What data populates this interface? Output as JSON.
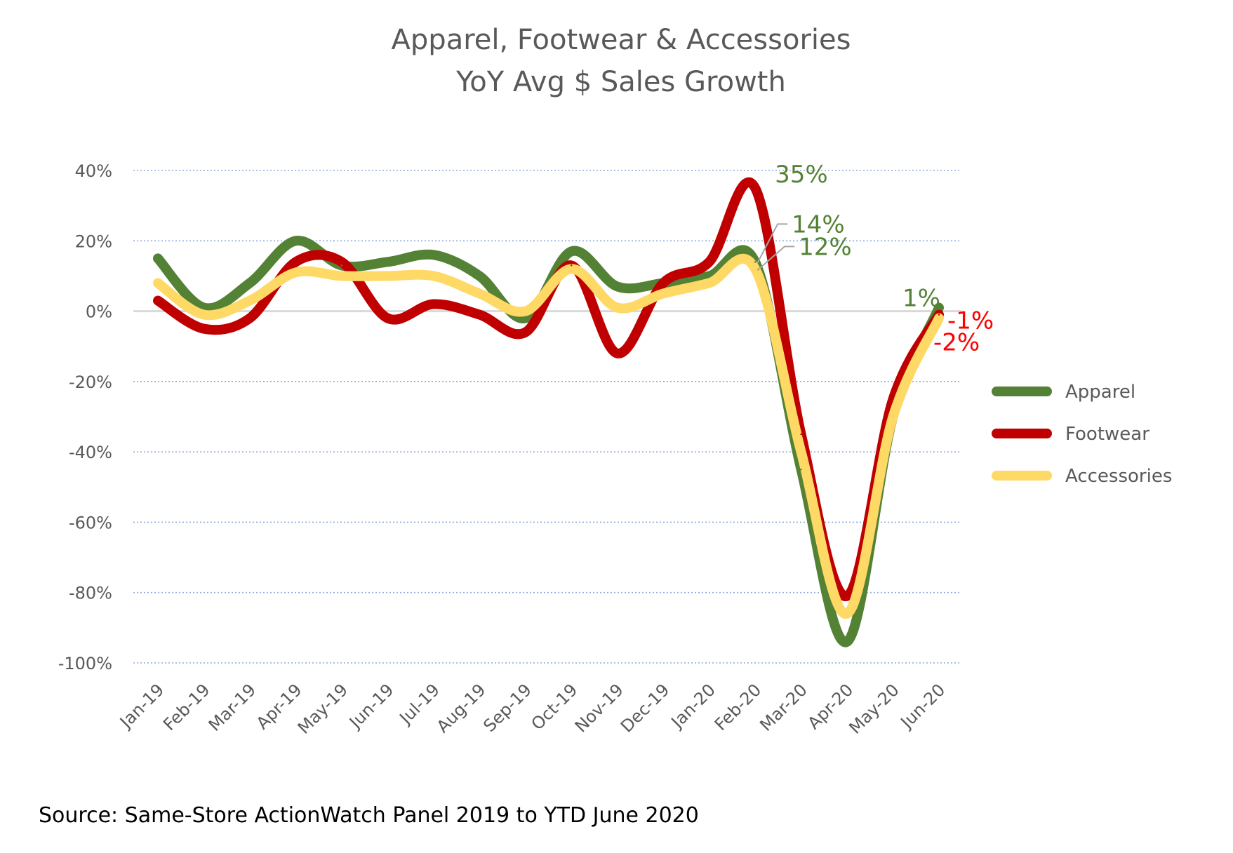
{
  "colors": {
    "Apparel": "#548235",
    "Footwear": "#C00000",
    "Accessories": "#FFD966",
    "axis_text": "#595959",
    "grid": "#8EA9DB",
    "zero_line": "#D9D9D9",
    "annotation_green": "#548235",
    "annotation_red": "#FF0000",
    "leader": "#A6A6A6"
  },
  "chart_data": {
    "type": "line",
    "title": [
      "Apparel, Footwear & Accessories",
      "YoY Avg $ Sales Growth"
    ],
    "xlabel": "",
    "ylabel": "",
    "categories": [
      "Jan-19",
      "Feb-19",
      "Mar-19",
      "Apr-19",
      "May-19",
      "Jun-19",
      "Jul-19",
      "Aug-19",
      "Sep-19",
      "Oct-19",
      "Nov-19",
      "Dec-19",
      "Jan-20",
      "Feb-20",
      "Mar-20",
      "Apr-20",
      "May-20",
      "Jun-20"
    ],
    "ylim": [
      -100,
      40
    ],
    "yticks": [
      40,
      20,
      0,
      -20,
      -40,
      -60,
      -80,
      -100
    ],
    "ytick_labels": [
      "40%",
      "20%",
      "0%",
      "-20%",
      "-40%",
      "-60%",
      "-80%",
      "-100%"
    ],
    "grid": true,
    "legend_position": "right",
    "series": [
      {
        "name": "Apparel",
        "values": [
          15,
          1,
          8,
          20,
          13,
          14,
          16,
          10,
          -2,
          17,
          7,
          8,
          10,
          14,
          -45,
          -94,
          -30,
          1
        ]
      },
      {
        "name": "Footwear",
        "values": [
          3,
          -5,
          -2,
          14,
          14,
          -2,
          2,
          -1,
          -6,
          13,
          -12,
          8,
          14,
          35,
          -35,
          -81,
          -25,
          -1
        ]
      },
      {
        "name": "Accessories",
        "values": [
          8,
          -1,
          3,
          11,
          10,
          10,
          10,
          5,
          0,
          12,
          1,
          5,
          8,
          12,
          -40,
          -86,
          -30,
          -2
        ]
      }
    ],
    "annotations": [
      {
        "text": "35%",
        "series": "Footwear",
        "category": "Feb-20",
        "color_key": "annotation_green"
      },
      {
        "text": "14%",
        "series": "Apparel",
        "category": "Feb-20",
        "color_key": "annotation_green"
      },
      {
        "text": "12%",
        "series": "Accessories",
        "category": "Feb-20",
        "color_key": "annotation_green"
      },
      {
        "text": "1%",
        "series": "Apparel",
        "category": "Jun-20",
        "color_key": "annotation_green"
      },
      {
        "text": "-1%",
        "series": "Footwear",
        "category": "Jun-20",
        "color_key": "annotation_red"
      },
      {
        "text": "-2%",
        "series": "Accessories",
        "category": "Jun-20",
        "color_key": "annotation_red"
      }
    ],
    "source": "Source:  Same-Store ActionWatch Panel 2019 to YTD June 2020"
  }
}
